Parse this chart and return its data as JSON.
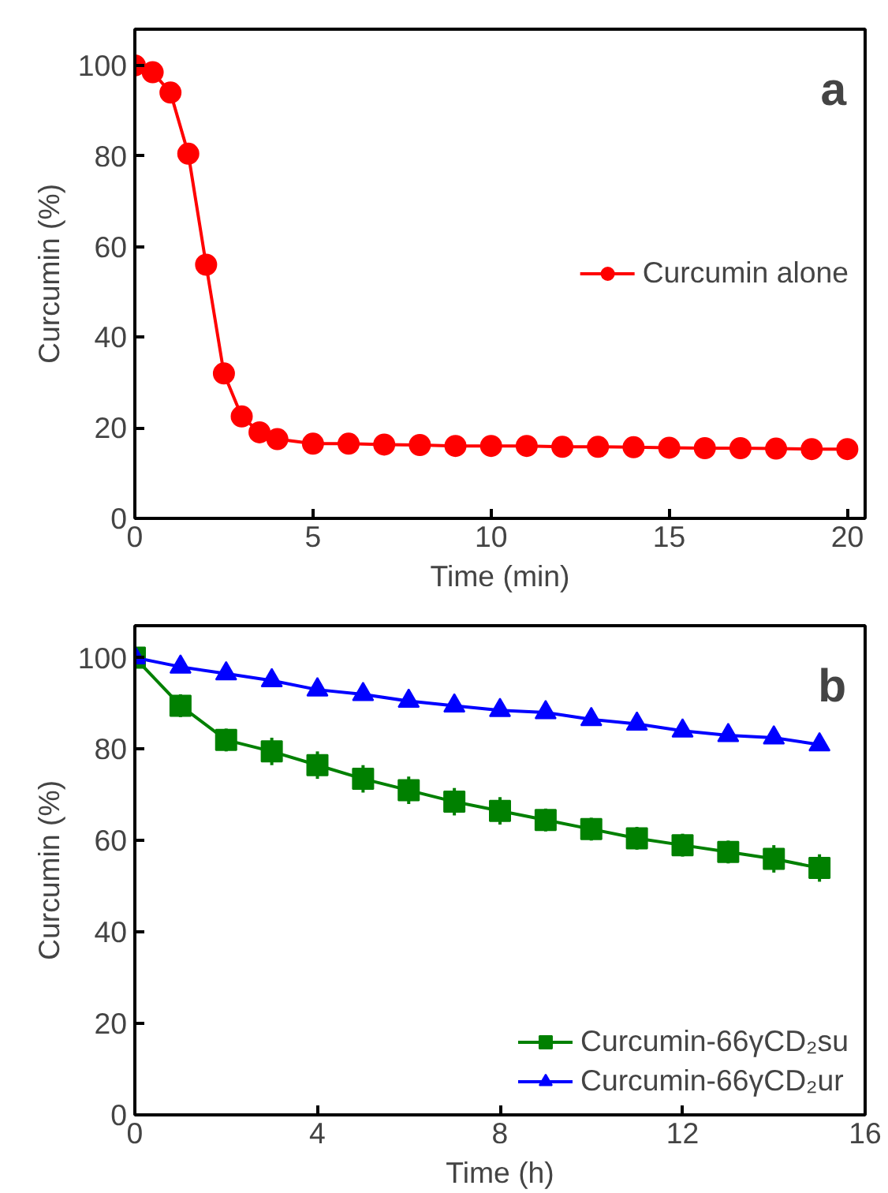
{
  "chart_data": [
    {
      "type": "line",
      "xlabel": "Time (min)",
      "ylabel": "Curcumin (%)",
      "annotations": [
        "a"
      ],
      "x": [
        0,
        0.5,
        1,
        1.5,
        2,
        2.5,
        3,
        3.5,
        4,
        5,
        6,
        7,
        8,
        9,
        10,
        11,
        12,
        13,
        14,
        15,
        16,
        17,
        18,
        19,
        20
      ],
      "series": [
        {
          "name": "Curcumin alone",
          "color": "#ff0000",
          "marker": "circle",
          "values": [
            100,
            98.5,
            94,
            80.5,
            56,
            32,
            22.5,
            19,
            17.5,
            16.5,
            16.5,
            16.3,
            16.2,
            16,
            16,
            16,
            15.8,
            15.8,
            15.7,
            15.6,
            15.5,
            15.5,
            15.4,
            15.3,
            15.3
          ]
        }
      ],
      "xlim": [
        0,
        20.5
      ],
      "ylim": [
        0,
        108
      ],
      "xticks": [
        0,
        5,
        10,
        15,
        20
      ],
      "yticks": [
        0,
        20,
        40,
        60,
        80,
        100
      ],
      "grid": false,
      "legend": "center right"
    },
    {
      "type": "line",
      "xlabel": "Time (h)",
      "ylabel": "Curcumin (%)",
      "annotations": [
        "b"
      ],
      "x": [
        0,
        1,
        2,
        3,
        4,
        5,
        6,
        7,
        8,
        9,
        10,
        11,
        12,
        13,
        14,
        15
      ],
      "series": [
        {
          "name": "Curcumin-66γCD₂su",
          "color": "#008000",
          "marker": "square",
          "values": [
            100,
            89.5,
            82,
            79.5,
            76.5,
            73.5,
            71,
            68.5,
            66.5,
            64.5,
            62.5,
            60.5,
            59,
            57.5,
            56,
            54
          ],
          "errors": [
            null,
            2.5,
            2.5,
            3,
            3,
            3,
            3,
            3,
            3,
            2.5,
            2.5,
            2.5,
            2.5,
            2.5,
            3,
            3
          ]
        },
        {
          "name": "Curcumin-66γCD₂ur",
          "color": "#0000ff",
          "marker": "triangle",
          "values": [
            100,
            98,
            96.5,
            95,
            93,
            92,
            90.5,
            89.5,
            88.5,
            88,
            86.5,
            85.5,
            84,
            83,
            82.5,
            81
          ]
        }
      ],
      "xlim": [
        0,
        16
      ],
      "ylim": [
        0,
        107
      ],
      "xticks": [
        0,
        4,
        8,
        12,
        16
      ],
      "yticks": [
        0,
        20,
        40,
        60,
        80,
        100
      ],
      "grid": false,
      "legend": "bottom right"
    }
  ]
}
